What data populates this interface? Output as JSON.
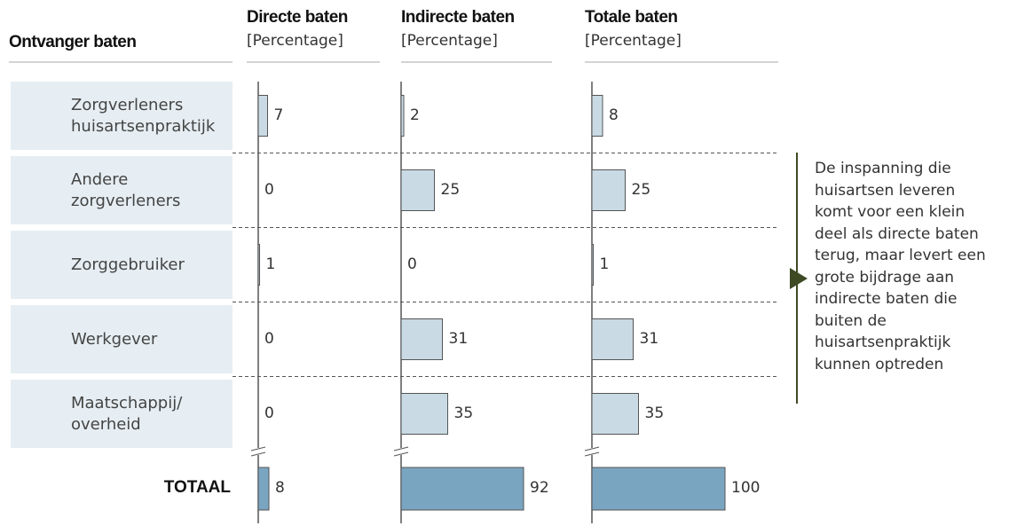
{
  "chart_data": {
    "type": "bar",
    "row_header": "Ontvanger baten",
    "unit_label": "[Percentage]",
    "categories": [
      "Zorgverleners\nhuisartsenpraktijk",
      "Andere\nzorgverleners",
      "Zorggebruiker",
      "Werkgever",
      "Maatschappij/\noverheid",
      "TOTAAL"
    ],
    "series": [
      {
        "name": "Directe baten",
        "color": "#c9dae4",
        "values": [
          7,
          0,
          1,
          0,
          0,
          8
        ]
      },
      {
        "name": "Indirecte baten",
        "color": "#c9dae4",
        "values": [
          2,
          25,
          0,
          31,
          35,
          92
        ]
      },
      {
        "name": "Totale baten",
        "color": "#c9dae4",
        "values": [
          8,
          25,
          1,
          31,
          35,
          100
        ]
      }
    ],
    "total_color": "#7aa5c1",
    "xlim": [
      0,
      100
    ],
    "annotation": "De inspanning die\nhuisartsen leveren\nkomt voor een klein\ndeel als directe baten\nterug, maar levert een\ngrote bijdrage aan\nindirecte baten die\nbuiten de\nhuisartsenpraktijk\nkunnen optreden"
  }
}
